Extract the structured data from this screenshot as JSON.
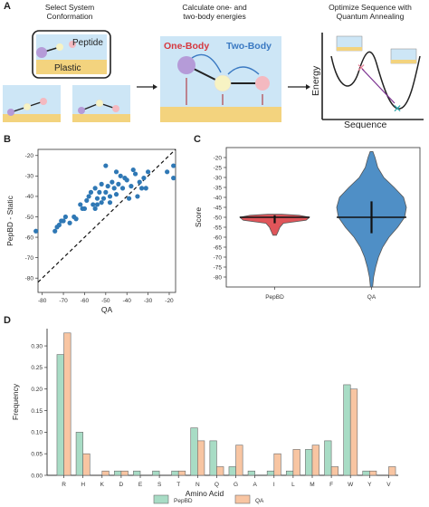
{
  "panels": {
    "A": {
      "letter": "A",
      "step1_title": "Select System\nConformation",
      "step2_title": "Calculate one- and\ntwo-body energies",
      "step3_title": "Optimize Sequence with\nQuantum Annealing",
      "peptide_label": "Peptide",
      "plastic_label": "Plastic",
      "one_body_label": "One-Body",
      "two_body_label": "Two-Body",
      "energy_label": "Energy",
      "sequence_label": "Sequence",
      "colors": {
        "water": "#cde6f6",
        "plastic": "#f3d37e",
        "one_body": "#d6383f",
        "two_body": "#3a79c2",
        "purple": "#b59bd8",
        "yellow": "#f7f3c3",
        "pink": "#f4b9c0",
        "arrow": "#b0414b"
      }
    },
    "B": {
      "letter": "B",
      "chart_data": {
        "type": "scatter",
        "xlabel": "QA",
        "ylabel": "PepBD - Static",
        "xlim": [
          -82,
          -17
        ],
        "ylim": [
          -87,
          -17
        ],
        "xticks": [
          -80,
          -70,
          -60,
          -50,
          -40,
          -30,
          -20
        ],
        "yticks": [
          -80,
          -70,
          -60,
          -50,
          -40,
          -30,
          -20
        ],
        "diagonal": true,
        "point_color": "#2f78b5",
        "points": [
          [
            -83,
            -57
          ],
          [
            -74,
            -57
          ],
          [
            -73,
            -55
          ],
          [
            -72,
            -54
          ],
          [
            -71,
            -52
          ],
          [
            -70,
            -52
          ],
          [
            -69,
            -50
          ],
          [
            -67,
            -53
          ],
          [
            -65,
            -50
          ],
          [
            -64,
            -51
          ],
          [
            -62,
            -44
          ],
          [
            -61,
            -46
          ],
          [
            -60,
            -46
          ],
          [
            -59,
            -42
          ],
          [
            -58,
            -40
          ],
          [
            -57,
            -38
          ],
          [
            -56,
            -44
          ],
          [
            -55,
            -36
          ],
          [
            -55,
            -46
          ],
          [
            -54,
            -41
          ],
          [
            -54,
            -44
          ],
          [
            -53,
            -38
          ],
          [
            -52,
            -34
          ],
          [
            -52,
            -43
          ],
          [
            -51,
            -41
          ],
          [
            -50,
            -25
          ],
          [
            -50,
            -38
          ],
          [
            -49,
            -35
          ],
          [
            -48,
            -43
          ],
          [
            -48,
            -40
          ],
          [
            -47,
            -33
          ],
          [
            -46,
            -36
          ],
          [
            -45,
            -39
          ],
          [
            -45,
            -28
          ],
          [
            -44,
            -34
          ],
          [
            -43,
            -30
          ],
          [
            -42,
            -36
          ],
          [
            -41,
            -31
          ],
          [
            -40,
            -32
          ],
          [
            -39,
            -41
          ],
          [
            -38,
            -35
          ],
          [
            -37,
            -27
          ],
          [
            -36,
            -29
          ],
          [
            -35,
            -40
          ],
          [
            -34,
            -33
          ],
          [
            -33,
            -36
          ],
          [
            -32,
            -31
          ],
          [
            -31,
            -36
          ],
          [
            -30,
            -28
          ],
          [
            -21,
            -28
          ],
          [
            -18,
            -31
          ],
          [
            -18,
            -25
          ]
        ]
      }
    },
    "C": {
      "letter": "C",
      "chart_data": {
        "type": "violin",
        "ylabel": "Score",
        "ylim": [
          -85,
          -15
        ],
        "yticks": [
          -80,
          -75,
          -70,
          -65,
          -60,
          -55,
          -50,
          -45,
          -40,
          -35,
          -30,
          -25,
          -20
        ],
        "categories": [
          "PepBD",
          "QA"
        ],
        "series": [
          {
            "name": "PepBD",
            "color": "#e0555a",
            "median": -50,
            "whisker": [
              -53,
              -49
            ],
            "profile": [
              [
                -59,
                0.05
              ],
              [
                -57,
                0.1
              ],
              [
                -55,
                0.15
              ],
              [
                -53,
                0.25
              ],
              [
                -51.5,
                0.9
              ],
              [
                -50,
                1.0
              ],
              [
                -49,
                0.7
              ],
              [
                -48.5,
                0.2
              ]
            ]
          },
          {
            "name": "QA",
            "color": "#4f8fc6",
            "median": -50,
            "whisker": [
              -58,
              -42
            ],
            "profile": [
              [
                -85,
                0.03
              ],
              [
                -80,
                0.06
              ],
              [
                -75,
                0.12
              ],
              [
                -70,
                0.2
              ],
              [
                -65,
                0.32
              ],
              [
                -60,
                0.5
              ],
              [
                -55,
                0.75
              ],
              [
                -50,
                0.95
              ],
              [
                -45,
                1.0
              ],
              [
                -40,
                0.92
              ],
              [
                -35,
                0.65
              ],
              [
                -30,
                0.35
              ],
              [
                -25,
                0.18
              ],
              [
                -20,
                0.1
              ],
              [
                -17,
                0.04
              ]
            ]
          }
        ]
      }
    },
    "D": {
      "letter": "D",
      "chart_data": {
        "type": "bar",
        "xlabel": "Amino Acid",
        "ylabel": "Frequency",
        "ylim": [
          0,
          0.34
        ],
        "yticks": [
          0,
          0.05,
          0.1,
          0.15,
          0.2,
          0.25,
          0.3
        ],
        "ytick_labels": [
          "0.00",
          "0.05",
          "0.10",
          "0.15",
          "0.20",
          "0.25",
          "0.30"
        ],
        "categories": [
          "R",
          "H",
          "K",
          "D",
          "E",
          "S",
          "T",
          "N",
          "Q",
          "G",
          "A",
          "I",
          "L",
          "M",
          "F",
          "W",
          "Y",
          "V"
        ],
        "series": [
          {
            "name": "PepBD",
            "color": "#a8dcc5",
            "values": [
              0.28,
              0.1,
              0.0,
              0.01,
              0.01,
              0.01,
              0.01,
              0.11,
              0.08,
              0.02,
              0.01,
              0.01,
              0.01,
              0.06,
              0.08,
              0.21,
              0.01,
              0.0
            ]
          },
          {
            "name": "QA",
            "color": "#f8c5a2",
            "values": [
              0.33,
              0.05,
              0.01,
              0.01,
              0.0,
              0.0,
              0.01,
              0.08,
              0.02,
              0.07,
              0.0,
              0.05,
              0.06,
              0.07,
              0.02,
              0.2,
              0.01,
              0.02
            ]
          }
        ]
      }
    }
  }
}
